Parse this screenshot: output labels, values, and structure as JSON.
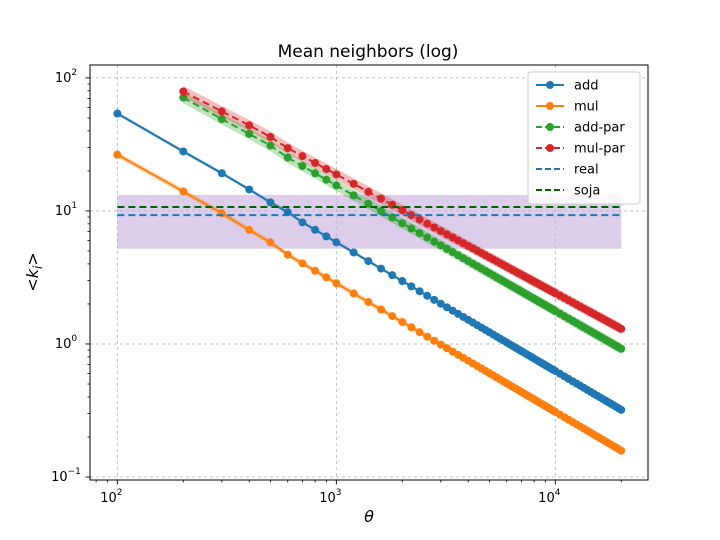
{
  "chart_data": {
    "type": "line",
    "title": "Mean neighbors (log)",
    "xlabel": "θ",
    "ylabel": "<k_i>",
    "xscale": "log",
    "yscale": "log",
    "xlim": [
      75,
      26500
    ],
    "ylim": [
      0.095,
      125
    ],
    "grid": true,
    "legend_position": "top-right",
    "x_ticks": [
      {
        "value": 100,
        "base": "10",
        "exp": "2"
      },
      {
        "value": 1000,
        "base": "10",
        "exp": "3"
      },
      {
        "value": 10000,
        "base": "10",
        "exp": "4"
      }
    ],
    "y_ticks": [
      {
        "value": 0.1,
        "base": "10",
        "exp": "−1"
      },
      {
        "value": 1,
        "base": "10",
        "exp": "0"
      },
      {
        "value": 10,
        "base": "10",
        "exp": "1"
      },
      {
        "value": 100,
        "base": "10",
        "exp": "2"
      }
    ],
    "band": {
      "y_low": 5.2,
      "y_high": 13.2,
      "x_start": 100,
      "x_end": 20000,
      "color": "#c9b3e0"
    },
    "series": [
      {
        "name": "add",
        "color": "#1f77b4",
        "linestyle": "solid",
        "x_start": 100,
        "x_end": 20000,
        "y_start": 54,
        "y_end": 0.32,
        "sample_x": [
          100,
          200,
          300,
          400,
          500,
          600
        ],
        "sample_y": [
          54,
          28,
          19.2,
          14.5,
          11.6,
          9.8
        ],
        "band_pct": 0.03
      },
      {
        "name": "mul",
        "color": "#ff7f0e",
        "linestyle": "solid",
        "x_start": 100,
        "x_end": 20000,
        "y_start": 26.5,
        "y_end": 0.158,
        "sample_x": [
          100,
          200,
          300,
          400,
          500
        ],
        "sample_y": [
          26.5,
          14,
          9.6,
          7.2,
          5.8
        ],
        "band_pct": 0.05
      },
      {
        "name": "add-par",
        "color": "#2ca02c",
        "linestyle": "dashed",
        "x_start": 200,
        "x_end": 20000,
        "y_start": 71,
        "y_end": 0.92,
        "sample_x": [
          200,
          300,
          400,
          500
        ],
        "sample_y": [
          71,
          49,
          38,
          31
        ],
        "band_pct": 0.1
      },
      {
        "name": "mul-par",
        "color": "#d62728",
        "linestyle": "dashed",
        "x_start": 200,
        "x_end": 20000,
        "y_start": 79,
        "y_end": 1.3,
        "sample_x": [
          200,
          300,
          400,
          500
        ],
        "sample_y": [
          79,
          56,
          44,
          36
        ],
        "band_pct": 0.1
      },
      {
        "name": "real",
        "color": "#1f77b4",
        "linestyle": "dashed",
        "hline": 9.3,
        "x_start": 100,
        "x_end": 20000
      },
      {
        "name": "soja",
        "color": "#006400",
        "linestyle": "dashed",
        "hline": 10.7,
        "x_start": 100,
        "x_end": 20000
      }
    ]
  }
}
